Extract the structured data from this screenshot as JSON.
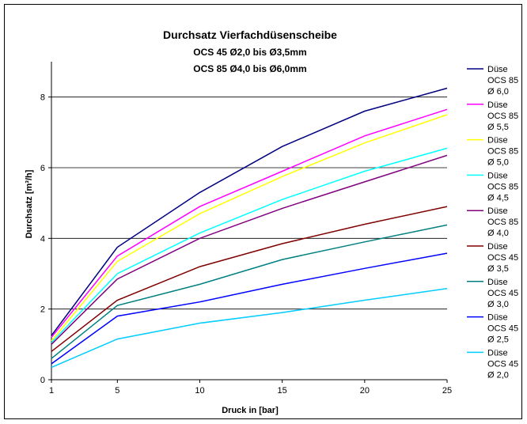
{
  "chart_data": {
    "type": "line",
    "title_lines": [
      "Durchsatz Vierfachdüsenscheibe",
      "OCS 45 Ø2,0 bis Ø3,5mm",
      "OCS 85 Ø4,0 bis Ø6,0mm"
    ],
    "xlabel": "Druck in [bar]",
    "ylabel": "Durchsatz [m³/h]",
    "x_categories": [
      "1",
      "5",
      "10",
      "15",
      "20",
      "25"
    ],
    "y_ticks": [
      "0",
      "2",
      "4",
      "6",
      "8"
    ],
    "ylim": [
      0,
      9
    ],
    "grid": true,
    "legend_position": "right",
    "series": [
      {
        "label_lines": [
          "Düse",
          "OCS 85",
          "Ø 6,0"
        ],
        "color": "#000080",
        "values": [
          1.25,
          3.75,
          5.3,
          6.6,
          7.6,
          8.25
        ]
      },
      {
        "label_lines": [
          "Düse",
          "OCS 85",
          "Ø 5,5"
        ],
        "color": "#ff00ff",
        "values": [
          1.2,
          3.5,
          4.9,
          5.9,
          6.9,
          7.65
        ]
      },
      {
        "label_lines": [
          "Düse",
          "OCS 85",
          "Ø 5,0"
        ],
        "color": "#ffff00",
        "values": [
          1.1,
          3.35,
          4.7,
          5.75,
          6.7,
          7.5
        ]
      },
      {
        "label_lines": [
          "Düse",
          "OCS 85",
          "Ø 4,5"
        ],
        "color": "#00ffff",
        "values": [
          1.05,
          3.0,
          4.15,
          5.1,
          5.9,
          6.55
        ]
      },
      {
        "label_lines": [
          "Düse",
          "OCS 85",
          "Ø 4,0"
        ],
        "color": "#800080",
        "values": [
          1.0,
          2.85,
          4.0,
          4.85,
          5.6,
          6.35
        ]
      },
      {
        "label_lines": [
          "Düse",
          "OCS 45",
          "Ø 3,5"
        ],
        "color": "#800000",
        "values": [
          0.8,
          2.25,
          3.2,
          3.85,
          4.4,
          4.9
        ]
      },
      {
        "label_lines": [
          "Düse",
          "OCS 45",
          "Ø 3,0"
        ],
        "color": "#008080",
        "values": [
          0.6,
          2.1,
          2.7,
          3.4,
          3.9,
          4.38
        ]
      },
      {
        "label_lines": [
          "Düse",
          "OCS 45",
          "Ø 2,5"
        ],
        "color": "#0000ff",
        "values": [
          0.45,
          1.8,
          2.2,
          2.7,
          3.15,
          3.58
        ]
      },
      {
        "label_lines": [
          "Düse",
          "OCS 45",
          "Ø 2,0"
        ],
        "color": "#00ccff",
        "values": [
          0.35,
          1.15,
          1.6,
          1.9,
          2.25,
          2.58
        ]
      }
    ]
  }
}
